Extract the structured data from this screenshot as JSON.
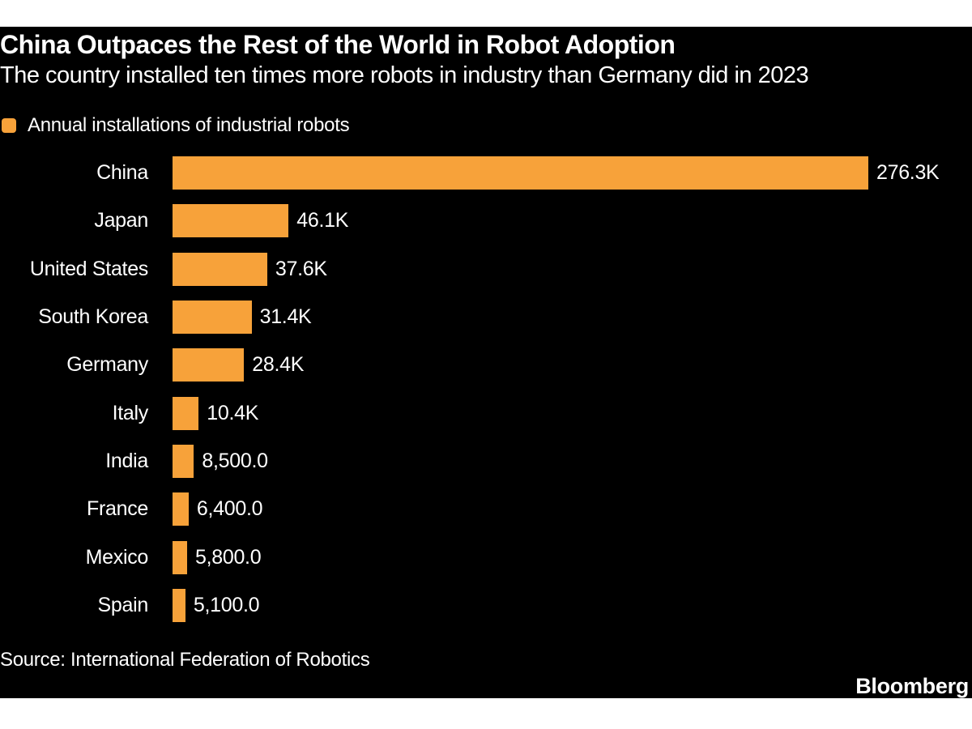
{
  "header": {
    "title": "China Outpaces the Rest of the World in Robot Adoption",
    "subtitle": "The country installed ten times more robots in industry than Germany did in 2023"
  },
  "legend": {
    "label": "Annual installations of industrial robots"
  },
  "chart_data": {
    "type": "bar",
    "orientation": "horizontal",
    "title": "China Outpaces the Rest of the World in Robot Adoption",
    "subtitle": "The country installed ten times more robots in industry than Germany did in 2023",
    "legend": [
      "Annual installations of industrial robots"
    ],
    "legend_position": "top-left",
    "grid": false,
    "categories": [
      "China",
      "Japan",
      "United States",
      "South Korea",
      "Germany",
      "Italy",
      "India",
      "France",
      "Mexico",
      "Spain"
    ],
    "values": [
      276300,
      46100,
      37600,
      31400,
      28400,
      10400,
      8500,
      6400,
      5800,
      5100
    ],
    "value_labels": [
      "276.3K",
      "46.1K",
      "37.6K",
      "31.4K",
      "28.4K",
      "10.4K",
      "8,500.0",
      "6,400.0",
      "5,800.0",
      "5,100.0"
    ],
    "xlim": [
      0,
      276300
    ],
    "bar_color": "#F7A23A"
  },
  "footer": {
    "source": "Source: International Federation of Robotics",
    "brand": "Bloomberg"
  },
  "colors": {
    "page_background": "#FFFFFF",
    "panel_background": "#000000",
    "accent": "#F7A23A",
    "text": "#FFFFFF"
  }
}
